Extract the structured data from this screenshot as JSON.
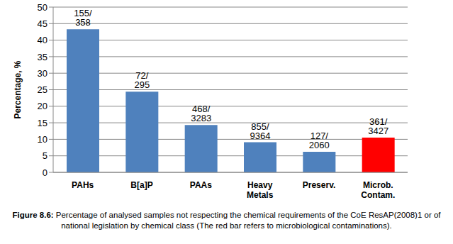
{
  "chart_data": {
    "type": "bar",
    "y_label": "Percentage, %",
    "categories": [
      "PAHs",
      "B[a]P",
      "PAAs",
      "Heavy Metals",
      "Preserv.",
      "Microb. Contam."
    ],
    "values": [
      43.3,
      24.4,
      14.3,
      9.1,
      6.2,
      10.5
    ],
    "annotations": [
      "155/ 358",
      "72/ 295",
      "468/ 3283",
      "855/ 9364",
      "127/ 2060",
      "361/ 3427"
    ],
    "colors": [
      "#4f81bd",
      "#4f81bd",
      "#4f81bd",
      "#4f81bd",
      "#4f81bd",
      "#ff0000"
    ],
    "ylim": [
      0,
      50
    ],
    "yticks": [
      0,
      5,
      10,
      15,
      20,
      25,
      30,
      35,
      40,
      45,
      50
    ],
    "grid": true,
    "caption": [
      "Figure 8.6:",
      " Percentage of analysed samples not respecting the chemical requirements of the CoE ResAP(2008)1 or of national legislation by chemical class (The red bar refers to microbiological contaminations)."
    ]
  }
}
